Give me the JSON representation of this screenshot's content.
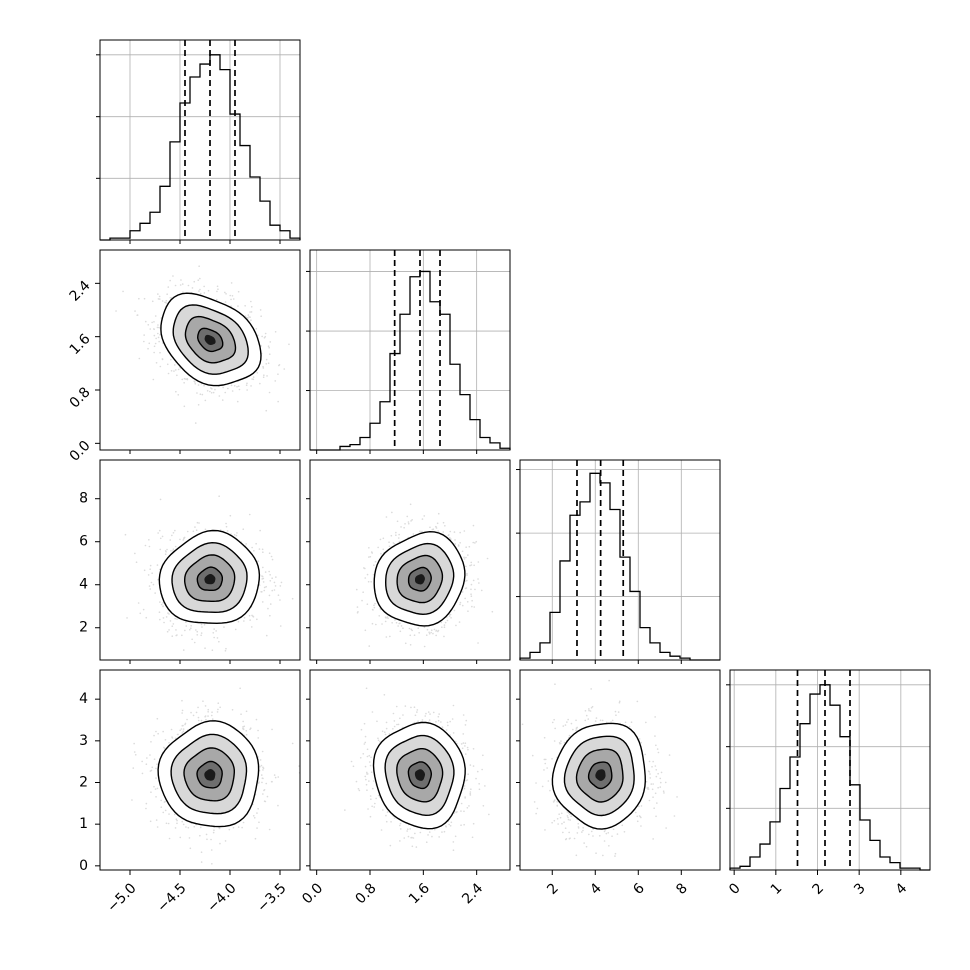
{
  "chart_data": {
    "type": "corner",
    "grid": true,
    "parameters": [
      {
        "range": [
          -5.3,
          -3.3
        ],
        "ticks": [
          -5.0,
          -4.5,
          -4.0,
          -3.5
        ],
        "tick_labels": [
          "−5.0",
          "−4.5",
          "−4.0",
          "−3.5"
        ],
        "quantiles": [
          -4.45,
          -4.2,
          -3.95
        ],
        "hist": [
          0,
          0.01,
          0.01,
          0.05,
          0.09,
          0.15,
          0.29,
          0.53,
          0.74,
          0.88,
          0.95,
          1.0,
          0.92,
          0.68,
          0.51,
          0.34,
          0.21,
          0.08,
          0.05,
          0.01
        ],
        "hist_ymax": 1.08
      },
      {
        "range": [
          -0.1,
          2.9
        ],
        "ticks": [
          0.0,
          0.8,
          1.6,
          2.4
        ],
        "tick_labels": [
          "0.0",
          "0.8",
          "1.6",
          "2.4"
        ],
        "quantiles": [
          1.17,
          1.55,
          1.85
        ],
        "hist": [
          0,
          0,
          0,
          0.02,
          0.03,
          0.07,
          0.15,
          0.27,
          0.54,
          0.76,
          0.97,
          1.0,
          0.83,
          0.76,
          0.48,
          0.31,
          0.17,
          0.07,
          0.04,
          0.01
        ],
        "hist_ymax": 1.12
      },
      {
        "range": [
          0.5,
          9.8
        ],
        "ticks": [
          2,
          4,
          6,
          8
        ],
        "tick_labels": [
          "2",
          "4",
          "6",
          "8"
        ],
        "quantiles": [
          3.15,
          4.25,
          5.3
        ],
        "hist": [
          0.01,
          0.04,
          0.09,
          0.25,
          0.52,
          0.76,
          0.83,
          0.98,
          0.93,
          0.79,
          0.54,
          0.36,
          0.17,
          0.09,
          0.04,
          0.02,
          0.01,
          0,
          0,
          0
        ],
        "hist_ymax": 1.05
      },
      {
        "range": [
          -0.1,
          4.7
        ],
        "ticks": [
          0,
          1,
          2,
          3,
          4
        ],
        "tick_labels": [
          "0",
          "1",
          "2",
          "3",
          "4"
        ],
        "quantiles": [
          1.52,
          2.18,
          2.78
        ],
        "hist": [
          0.01,
          0.02,
          0.07,
          0.14,
          0.26,
          0.44,
          0.61,
          0.79,
          0.95,
          1.0,
          0.89,
          0.72,
          0.46,
          0.27,
          0.16,
          0.07,
          0.04,
          0.01,
          0.01,
          0
        ],
        "hist_ymax": 1.08
      }
    ],
    "correlations": [
      {
        "i": 1,
        "j": 0,
        "rho": -0.3
      },
      {
        "i": 2,
        "j": 0,
        "rho": 0.05
      },
      {
        "i": 2,
        "j": 1,
        "rho": 0.1
      },
      {
        "i": 3,
        "j": 0,
        "rho": 0.0
      },
      {
        "i": 3,
        "j": 1,
        "rho": -0.05
      },
      {
        "i": 3,
        "j": 2,
        "rho": 0.05
      }
    ],
    "contour_levels_sigma": [
      0.5,
      1.0,
      1.5,
      2.0
    ],
    "colors": {
      "line": "#000000",
      "grid": "#b0b0b0",
      "density_dark": "#1a1a1a",
      "scatter": "#9a9a9a"
    }
  }
}
